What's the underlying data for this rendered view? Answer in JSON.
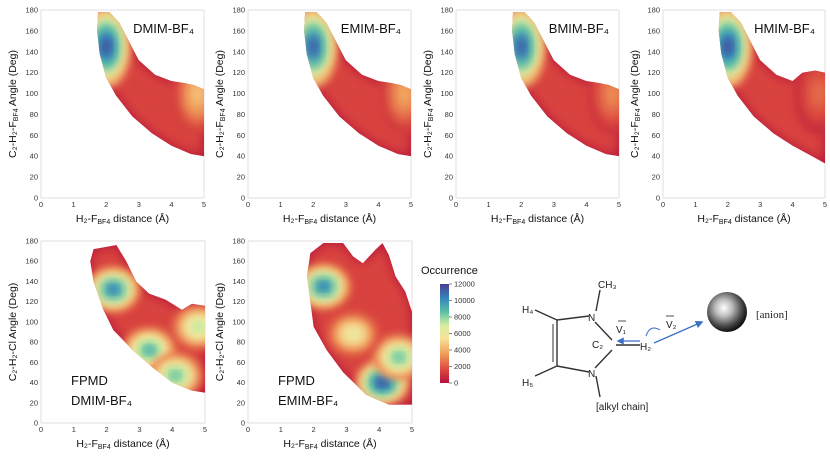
{
  "chart_data": [
    {
      "type": "heatmap",
      "label_lines": [
        "DMIM-BF₄"
      ],
      "label_pos": "top-right",
      "xlabel": "H₂-F",
      "xlabel_sub": "BF4",
      "xlabel_tail": " distance (Å)",
      "ylabel": "C₂-H₂-F",
      "ylabel_sub": "BF4",
      "ylabel_tail": " Angle (Deg)",
      "xlim": [
        0,
        5
      ],
      "ylim": [
        0,
        180
      ],
      "xticks": [
        "0",
        "1",
        "2",
        "3",
        "4",
        "5"
      ],
      "yticks": [
        "0",
        "20",
        "40",
        "60",
        "80",
        "100",
        "120",
        "140",
        "160",
        "180"
      ],
      "hotspots": [
        {
          "x": 2.0,
          "y": 145,
          "level": 0.95
        },
        {
          "x": 4.8,
          "y": 100,
          "level": 0.35
        }
      ]
    },
    {
      "type": "heatmap",
      "label_lines": [
        "EMIM-BF₄"
      ],
      "label_pos": "top-right",
      "xlabel": "H₂-F",
      "xlabel_sub": "BF4",
      "xlabel_tail": " distance (Å)",
      "ylabel": "C₂-H₂-F",
      "ylabel_sub": "BF4",
      "ylabel_tail": " Angle (Deg)",
      "xlim": [
        0,
        5
      ],
      "ylim": [
        0,
        180
      ],
      "xticks": [
        "0",
        "1",
        "2",
        "3",
        "4",
        "5"
      ],
      "yticks": [
        "0",
        "20",
        "40",
        "60",
        "80",
        "100",
        "120",
        "140",
        "160",
        "180"
      ],
      "hotspots": [
        {
          "x": 2.0,
          "y": 145,
          "level": 0.92
        },
        {
          "x": 4.8,
          "y": 100,
          "level": 0.3
        }
      ]
    },
    {
      "type": "heatmap",
      "label_lines": [
        "BMIM-BF₄"
      ],
      "label_pos": "top-right",
      "xlabel": "H₂-F",
      "xlabel_sub": "BF4",
      "xlabel_tail": " distance (Å)",
      "ylabel": "C₂-H₂-F",
      "ylabel_sub": "BF4",
      "ylabel_tail": " Angle (Deg)",
      "xlim": [
        0,
        5
      ],
      "ylim": [
        0,
        180
      ],
      "xticks": [
        "0",
        "1",
        "2",
        "3",
        "4",
        "5"
      ],
      "yticks": [
        "0",
        "20",
        "40",
        "60",
        "80",
        "100",
        "120",
        "140",
        "160",
        "180"
      ],
      "hotspots": [
        {
          "x": 2.0,
          "y": 145,
          "level": 0.92
        },
        {
          "x": 4.8,
          "y": 100,
          "level": 0.25
        }
      ]
    },
    {
      "type": "heatmap",
      "label_lines": [
        "HMIM-BF₄"
      ],
      "label_pos": "top-right",
      "xlabel": "H₂-F",
      "xlabel_sub": "BF4",
      "xlabel_tail": " distance (Å)",
      "ylabel": "C₂-H₂-F",
      "ylabel_sub": "BF4",
      "ylabel_tail": " Angle (Deg)",
      "xlim": [
        0,
        5
      ],
      "ylim": [
        0,
        180
      ],
      "xticks": [
        "0",
        "1",
        "2",
        "3",
        "4",
        "5"
      ],
      "yticks": [
        "0",
        "20",
        "40",
        "60",
        "80",
        "100",
        "120",
        "140",
        "160",
        "180"
      ],
      "hotspots": [
        {
          "x": 2.0,
          "y": 145,
          "level": 0.95
        },
        {
          "x": 4.8,
          "y": 100,
          "level": 0.2
        }
      ]
    },
    {
      "type": "heatmap",
      "label_lines": [
        "FPMD",
        "DMIM-BF₄"
      ],
      "label_pos": "bottom-left",
      "xlabel": "H₂-F",
      "xlabel_sub": "BF4",
      "xlabel_tail": " distance (Å)",
      "ylabel": "C₂-H₂-Cl Angle (Deg)",
      "ylabel_sub": "",
      "ylabel_tail": "",
      "xlim": [
        0,
        5
      ],
      "ylim": [
        0,
        180
      ],
      "xticks": [
        "0",
        "1",
        "2",
        "3",
        "4",
        "5"
      ],
      "yticks": [
        "0",
        "20",
        "40",
        "60",
        "80",
        "100",
        "120",
        "140",
        "160",
        "180"
      ],
      "hotspots": [
        {
          "x": 2.2,
          "y": 132,
          "level": 0.85
        },
        {
          "x": 3.3,
          "y": 72,
          "level": 0.75
        },
        {
          "x": 4.1,
          "y": 47,
          "level": 0.7
        },
        {
          "x": 4.8,
          "y": 95,
          "level": 0.6
        }
      ]
    },
    {
      "type": "heatmap",
      "label_lines": [
        "FPMD",
        "EMIM-BF₄"
      ],
      "label_pos": "bottom-left",
      "xlabel": "H₂-F",
      "xlabel_sub": "BF4",
      "xlabel_tail": " distance (Å)",
      "ylabel": "C₂-H₂-Cl Angle (Deg)",
      "ylabel_sub": "",
      "ylabel_tail": "",
      "xlim": [
        0,
        5
      ],
      "ylim": [
        0,
        180
      ],
      "xticks": [
        "0",
        "1",
        "2",
        "3",
        "4",
        "5"
      ],
      "yticks": [
        "0",
        "20",
        "40",
        "60",
        "80",
        "100",
        "120",
        "140",
        "160",
        "180"
      ],
      "hotspots": [
        {
          "x": 2.3,
          "y": 135,
          "level": 0.85
        },
        {
          "x": 4.1,
          "y": 40,
          "level": 0.95
        },
        {
          "x": 4.6,
          "y": 65,
          "level": 0.7
        },
        {
          "x": 3.2,
          "y": 88,
          "level": 0.5
        }
      ]
    }
  ],
  "colorbar": {
    "title": "Occurrence",
    "ticks": [
      "0",
      "2000",
      "4000",
      "6000",
      "8000",
      "10000",
      "12000"
    ],
    "range": [
      0,
      12000
    ],
    "colors": [
      "#b5123a",
      "#dc4a3f",
      "#f0a05a",
      "#f8e19a",
      "#d8efa0",
      "#5bc0a4",
      "#3582bb",
      "#4a3f8f"
    ]
  },
  "schematic": {
    "h4": "H₄",
    "h5": "H₅",
    "n_top": "N",
    "n_bottom": "N",
    "ch3": "CH₃",
    "c2": "C₂",
    "h2": "H₂",
    "v1": "V₁",
    "v2": "V₂",
    "anion": "[anion]",
    "alkyl": "[alkyl chain]"
  }
}
